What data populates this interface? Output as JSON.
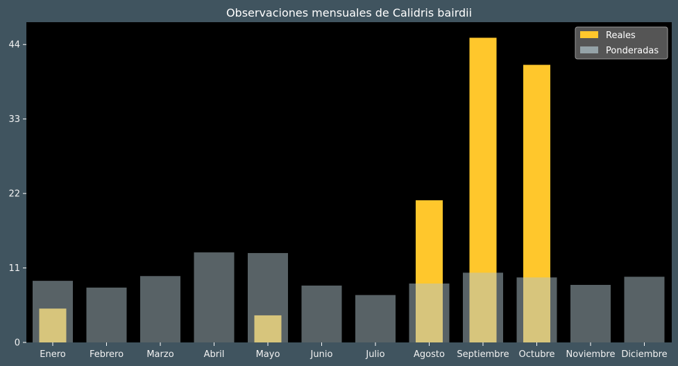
{
  "chart_data": {
    "type": "bar",
    "title": "Observaciones mensuales de Calidris bairdii",
    "xlabel": "",
    "ylabel": "",
    "categories": [
      "Enero",
      "Febrero",
      "Marzo",
      "Abril",
      "Mayo",
      "Junio",
      "Julio",
      "Agosto",
      "Septiembre",
      "Octubre",
      "Noviembre",
      "Diciembre"
    ],
    "series": [
      {
        "name": "Reales",
        "values": [
          5,
          0,
          0,
          0,
          4,
          0,
          0,
          21,
          45,
          41,
          0,
          0
        ],
        "color": "#ffc72c"
      },
      {
        "name": "Ponderadas",
        "values": [
          9.1,
          8.1,
          9.8,
          13.3,
          13.2,
          8.4,
          7.0,
          8.7,
          10.3,
          9.6,
          8.5,
          9.7
        ],
        "color": "#b0c4cc"
      }
    ],
    "yticks": [
      0,
      11,
      22,
      33,
      44
    ],
    "ylim": [
      0,
      47.3
    ],
    "grid": false,
    "legend_position": "top-right",
    "background": "#000000",
    "page_background": "#40545f"
  }
}
